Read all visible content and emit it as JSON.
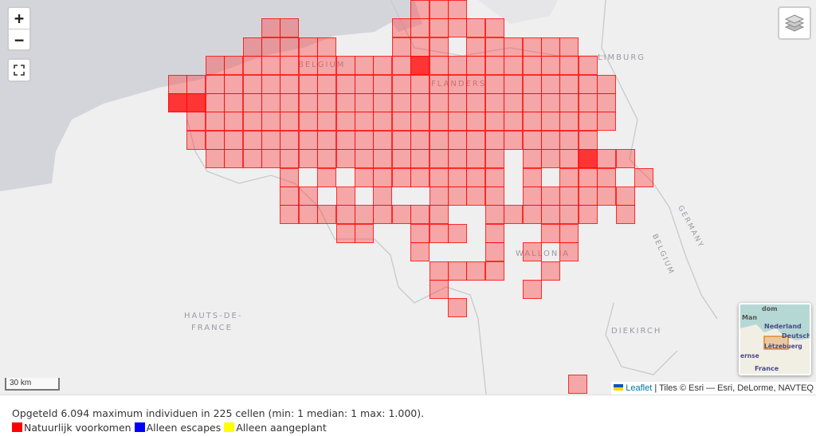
{
  "map": {
    "labels": {
      "belgium": "BELGIUM",
      "flanders": "FLANDERS",
      "limburg": "LIMBURG",
      "wallonia": "WALLONIA",
      "germany": "GERMANY",
      "belgium_border": "BELGIUM",
      "hauts_de_france_1": "HAUTS-DE-",
      "hauts_de_france_2": "FRANCE",
      "diekirch": "DIEKIRCH"
    },
    "cell_color": "#ff0000",
    "controls": {
      "zoom_in": "+",
      "zoom_out": "−",
      "fullscreen_icon": "fullscreen-icon",
      "layers_icon": "layers-icon"
    },
    "scale": "30 km",
    "attribution": {
      "leaflet": "Leaflet",
      "tiles": "| Tiles © Esri — Esri, DeLorme, NAVTEQ"
    },
    "minimap": {
      "labels": [
        "Man",
        "dom",
        "Nederland",
        "Deutschl",
        "Lëtzebuerg",
        "ernse",
        "France"
      ]
    }
  },
  "footer": {
    "summary": "Opgeteld 6.094 maximum individuen in 225 cellen (min: 1 median: 1 max: 1.000).",
    "legend": [
      {
        "label": "Natuurlijk voorkomen",
        "color": "#ff0000"
      },
      {
        "label": "Alleen escapes",
        "color": "#0000ff"
      },
      {
        "label": "Alleen aangeplant",
        "color": "#ffff00"
      }
    ]
  }
}
